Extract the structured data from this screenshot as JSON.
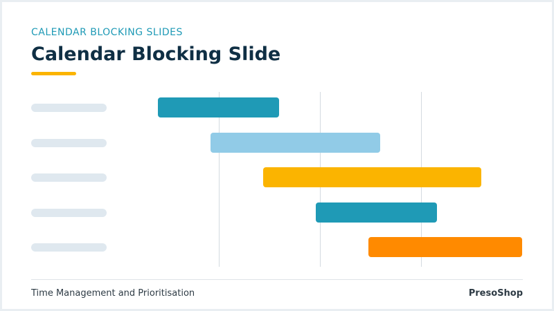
{
  "header": {
    "eyebrow": "CALENDAR BLOCKING SLIDES",
    "title": "Calendar Blocking Slide"
  },
  "footer": {
    "left_text": "Time Management and Prioritisation",
    "right_text": "PresoShop"
  },
  "colors": {
    "accent": "#fbb400",
    "title": "#0f2f44",
    "eyebrow": "#1f9ab6",
    "bar_teal": "#1f9ab6",
    "bar_light_blue": "#91cbe7",
    "bar_yellow": "#fbb400",
    "bar_orange": "#ff8a00"
  },
  "timeline": {
    "rows": [
      {
        "start": 0.0,
        "end": 1.2,
        "color": "#1f9ab6"
      },
      {
        "start": 0.52,
        "end": 2.2,
        "color": "#91cbe7"
      },
      {
        "start": 1.04,
        "end": 3.2,
        "color": "#fbb400"
      },
      {
        "start": 1.56,
        "end": 2.76,
        "color": "#1f9ab6"
      },
      {
        "start": 2.08,
        "end": 3.6,
        "color": "#ff8a00"
      }
    ],
    "divisions": [
      0.6,
      1.6,
      2.6
    ]
  }
}
